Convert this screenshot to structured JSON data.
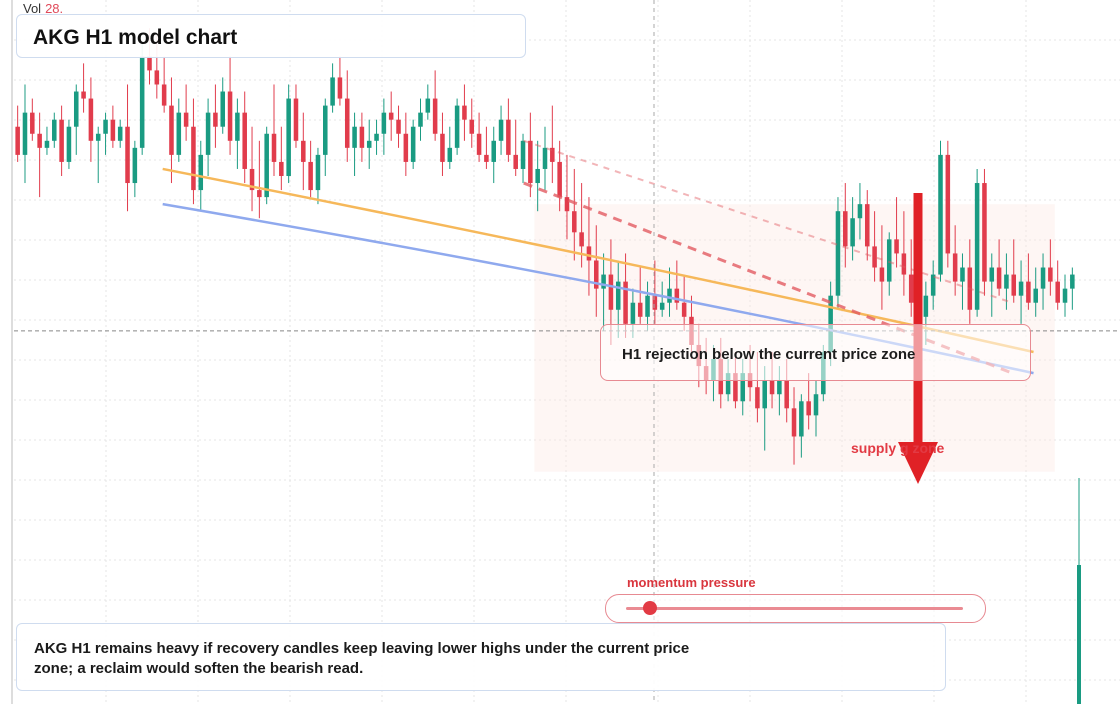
{
  "header": {
    "title": "AKG H1 model chart",
    "volume_label": "Vol",
    "volume_value": "28."
  },
  "callout": {
    "text": "H1 rejection below the current price zone"
  },
  "zone": {
    "label": "supply g zone"
  },
  "momentum": {
    "label": "momentum pressure",
    "level": 0.07
  },
  "summary": {
    "text": "AKG H1 remains heavy if recovery candles keep leaving lower highs under the current price zone; a reclaim would soften the bearish read."
  },
  "colors": {
    "up": "#1a9b82",
    "down": "#e13c4c",
    "ma_fast": "#f6b85a",
    "ma_slow": "#8fa9ee",
    "trend": "#e25b62",
    "grid": "#e4e4e4",
    "arrow": "#e02126"
  },
  "chart_data": {
    "type": "candlestick",
    "title": "AKG H1 model chart",
    "ylim": [
      0,
      100
    ],
    "current_price": 53,
    "candles_ohlc": [
      [
        82,
        85,
        77,
        78
      ],
      [
        78,
        88,
        74,
        84
      ],
      [
        84,
        86,
        80,
        81
      ],
      [
        81,
        84,
        72,
        79
      ],
      [
        79,
        82,
        78,
        80
      ],
      [
        80,
        84,
        79,
        83
      ],
      [
        83,
        85,
        75,
        77
      ],
      [
        77,
        83,
        76,
        82
      ],
      [
        82,
        88,
        78,
        87
      ],
      [
        87,
        91,
        84,
        86
      ],
      [
        86,
        89,
        77,
        80
      ],
      [
        80,
        82,
        74,
        81
      ],
      [
        81,
        84,
        78,
        83
      ],
      [
        83,
        85,
        79,
        80
      ],
      [
        80,
        83,
        79,
        82
      ],
      [
        82,
        88,
        70,
        74
      ],
      [
        74,
        80,
        72,
        79
      ],
      [
        79,
        94,
        78,
        92
      ],
      [
        92,
        96,
        88,
        90
      ],
      [
        90,
        95,
        86,
        88
      ],
      [
        88,
        92,
        84,
        85
      ],
      [
        85,
        89,
        74,
        78
      ],
      [
        78,
        86,
        77,
        84
      ],
      [
        84,
        88,
        80,
        82
      ],
      [
        82,
        86,
        71,
        73
      ],
      [
        73,
        80,
        70,
        78
      ],
      [
        78,
        86,
        75,
        84
      ],
      [
        84,
        88,
        79,
        82
      ],
      [
        82,
        89,
        81,
        87
      ],
      [
        87,
        92,
        78,
        80
      ],
      [
        80,
        86,
        76,
        84
      ],
      [
        84,
        87,
        74,
        76
      ],
      [
        76,
        82,
        70,
        73
      ],
      [
        73,
        80,
        69,
        72
      ],
      [
        72,
        82,
        71,
        81
      ],
      [
        81,
        88,
        75,
        77
      ],
      [
        77,
        82,
        73,
        75
      ],
      [
        75,
        88,
        74,
        86
      ],
      [
        86,
        88,
        79,
        80
      ],
      [
        80,
        84,
        73,
        77
      ],
      [
        77,
        80,
        72,
        73
      ],
      [
        73,
        79,
        71,
        78
      ],
      [
        78,
        86,
        75,
        85
      ],
      [
        85,
        91,
        84,
        89
      ],
      [
        89,
        92,
        85,
        86
      ],
      [
        86,
        90,
        77,
        79
      ],
      [
        79,
        84,
        75,
        82
      ],
      [
        82,
        84,
        77,
        79
      ],
      [
        79,
        83,
        76,
        80
      ],
      [
        80,
        83,
        78,
        81
      ],
      [
        81,
        86,
        78,
        84
      ],
      [
        84,
        87,
        80,
        83
      ],
      [
        83,
        85,
        79,
        81
      ],
      [
        81,
        84,
        75,
        77
      ],
      [
        77,
        83,
        76,
        82
      ],
      [
        82,
        86,
        80,
        84
      ],
      [
        84,
        88,
        83,
        86
      ],
      [
        86,
        90,
        80,
        81
      ],
      [
        81,
        84,
        75,
        77
      ],
      [
        77,
        82,
        76,
        79
      ],
      [
        79,
        86,
        78,
        85
      ],
      [
        85,
        88,
        80,
        83
      ],
      [
        83,
        86,
        79,
        81
      ],
      [
        81,
        84,
        77,
        78
      ],
      [
        78,
        82,
        76,
        77
      ],
      [
        77,
        82,
        74,
        80
      ],
      [
        80,
        85,
        78,
        83
      ],
      [
        83,
        86,
        77,
        78
      ],
      [
        78,
        83,
        75,
        76
      ],
      [
        76,
        81,
        74,
        80
      ],
      [
        80,
        84,
        72,
        74
      ],
      [
        74,
        80,
        70,
        76
      ],
      [
        76,
        82,
        73,
        79
      ],
      [
        79,
        85,
        74,
        77
      ],
      [
        77,
        80,
        70,
        72
      ],
      [
        72,
        78,
        66,
        70
      ],
      [
        70,
        76,
        63,
        67
      ],
      [
        67,
        74,
        62,
        65
      ],
      [
        65,
        72,
        58,
        63
      ],
      [
        63,
        68,
        55,
        59
      ],
      [
        59,
        64,
        53,
        61
      ],
      [
        61,
        66,
        51,
        56
      ],
      [
        56,
        63,
        52,
        60
      ],
      [
        60,
        64,
        52,
        54
      ],
      [
        54,
        59,
        52,
        57
      ],
      [
        57,
        62,
        54,
        55
      ],
      [
        55,
        60,
        53,
        58
      ],
      [
        58,
        63,
        54,
        56
      ],
      [
        56,
        60,
        55,
        57
      ],
      [
        57,
        62,
        55,
        59
      ],
      [
        59,
        63,
        56,
        57
      ],
      [
        57,
        61,
        53,
        55
      ],
      [
        55,
        58,
        49,
        51
      ],
      [
        51,
        54,
        45,
        48
      ],
      [
        48,
        52,
        44,
        46
      ],
      [
        46,
        51,
        43,
        49
      ],
      [
        49,
        52,
        42,
        44
      ],
      [
        44,
        49,
        43,
        47
      ],
      [
        47,
        50,
        42,
        43
      ],
      [
        43,
        49,
        41,
        47
      ],
      [
        47,
        51,
        43,
        45
      ],
      [
        45,
        50,
        40,
        42
      ],
      [
        42,
        48,
        36,
        46
      ],
      [
        46,
        50,
        42,
        44
      ],
      [
        44,
        48,
        41,
        46
      ],
      [
        46,
        49,
        40,
        42
      ],
      [
        42,
        45,
        34,
        38
      ],
      [
        38,
        44,
        35,
        43
      ],
      [
        43,
        47,
        39,
        41
      ],
      [
        41,
        46,
        38,
        44
      ],
      [
        44,
        51,
        43,
        50
      ],
      [
        50,
        60,
        48,
        58
      ],
      [
        58,
        72,
        56,
        70
      ],
      [
        70,
        74,
        62,
        65
      ],
      [
        65,
        72,
        63,
        69
      ],
      [
        69,
        74,
        66,
        71
      ],
      [
        71,
        73,
        63,
        65
      ],
      [
        65,
        70,
        60,
        62
      ],
      [
        62,
        68,
        56,
        60
      ],
      [
        60,
        67,
        58,
        66
      ],
      [
        66,
        72,
        62,
        64
      ],
      [
        64,
        70,
        58,
        61
      ],
      [
        61,
        66,
        55,
        57
      ],
      [
        57,
        62,
        52,
        55
      ],
      [
        55,
        60,
        51,
        58
      ],
      [
        58,
        63,
        56,
        61
      ],
      [
        61,
        80,
        60,
        78
      ],
      [
        78,
        80,
        62,
        64
      ],
      [
        64,
        68,
        58,
        60
      ],
      [
        60,
        64,
        56,
        62
      ],
      [
        62,
        66,
        54,
        56
      ],
      [
        56,
        76,
        55,
        74
      ],
      [
        74,
        76,
        58,
        60
      ],
      [
        60,
        64,
        55,
        62
      ],
      [
        62,
        66,
        58,
        59
      ],
      [
        59,
        64,
        56,
        61
      ],
      [
        61,
        66,
        57,
        58
      ],
      [
        58,
        63,
        54,
        60
      ],
      [
        60,
        64,
        56,
        57
      ],
      [
        57,
        62,
        55,
        59
      ],
      [
        59,
        64,
        56,
        62
      ],
      [
        62,
        66,
        58,
        60
      ],
      [
        60,
        63,
        56,
        57
      ],
      [
        57,
        61,
        55,
        59
      ],
      [
        59,
        62,
        56,
        61
      ]
    ],
    "moving_average_fast": {
      "from": [
        0.14,
        76
      ],
      "to": [
        0.96,
        50
      ]
    },
    "moving_average_slow": {
      "from": [
        0.14,
        71
      ],
      "to": [
        0.96,
        47
      ]
    },
    "trend_lines": [
      {
        "from": [
          0.48,
          80
        ],
        "to": [
          0.94,
          57
        ],
        "style": "dashed-light"
      },
      {
        "from": [
          0.48,
          74
        ],
        "to": [
          0.94,
          47
        ],
        "style": "dashed"
      }
    ],
    "annotations": [
      "H1 rejection below the current price zone",
      "supply g zone",
      "momentum pressure"
    ]
  }
}
